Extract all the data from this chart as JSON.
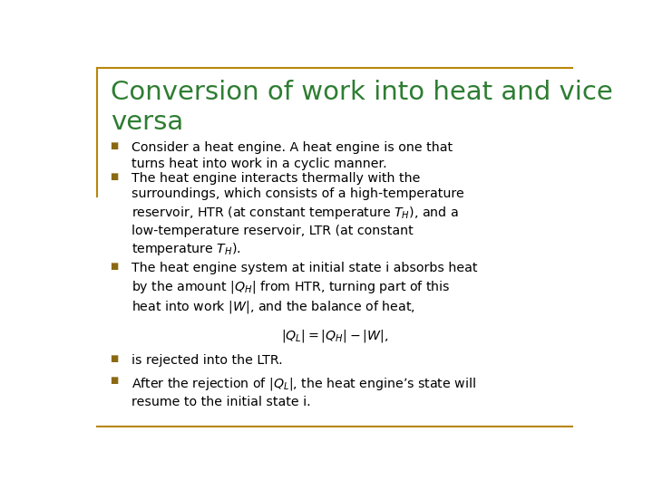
{
  "title_line1": "Conversion of work into heat and vice",
  "title_line2": "versa",
  "title_color": "#2E7D32",
  "background_color": "#FFFFFF",
  "border_color": "#B8860B",
  "bullet_color": "#8B6914",
  "text_color": "#000000",
  "bullet1": "Consider a heat engine. A heat engine is one that\nturns heat into work in a cyclic manner.",
  "bullet2": "The heat engine interacts thermally with the\nsurroundings, which consists of a high-temperature\nreservoir, HTR (at constant temperature $T_H$), and a\nlow-temperature reservoir, LTR (at constant\ntemperature $T_H$).",
  "bullet3a": "The heat engine system at initial state i absorbs heat\nby the amount $|Q_H|$ from HTR, turning part of this\nheat into work $|W|$, and the balance of heat,",
  "bullet3b": "$|Q_L| =|Q_H| -|W|,$",
  "bullet4": "is rejected into the LTR.",
  "bullet5": "After the rejection of $|Q_L|$, the heat engine’s state will\nresume to the initial state i."
}
